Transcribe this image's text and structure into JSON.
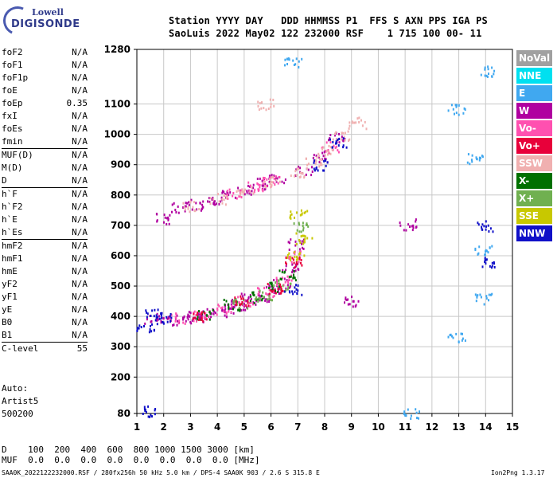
{
  "logo": {
    "line1": "Lowell",
    "line2": "DIGISONDE"
  },
  "header": {
    "line1": "Station YYYY DAY   DDD HHMMSS P1  FFS S AXN PPS IGA PS",
    "line2": "SaoLuis 2022 May02 122 232000 RSF    1 715 100 00- 11"
  },
  "params": [
    [
      {
        "k": "foF2",
        "v": "N/A"
      },
      {
        "k": "foF1",
        "v": "N/A"
      },
      {
        "k": "foF1p",
        "v": "N/A"
      },
      {
        "k": "foE",
        "v": "N/A"
      },
      {
        "k": "foEp",
        "v": "0.35"
      },
      {
        "k": "fxI",
        "v": "N/A"
      },
      {
        "k": "foEs",
        "v": "N/A"
      },
      {
        "k": "fmin",
        "v": "N/A"
      }
    ],
    [
      {
        "k": "MUF(D)",
        "v": "N/A"
      },
      {
        "k": "M(D)",
        "v": "N/A"
      },
      {
        "k": "D",
        "v": "N/A"
      }
    ],
    [
      {
        "k": "h`F",
        "v": "N/A"
      },
      {
        "k": "h`F2",
        "v": "N/A"
      },
      {
        "k": "h`E",
        "v": "N/A"
      },
      {
        "k": "h`Es",
        "v": "N/A"
      }
    ],
    [
      {
        "k": "hmF2",
        "v": "N/A"
      },
      {
        "k": "hmF1",
        "v": "N/A"
      },
      {
        "k": "hmE",
        "v": "N/A"
      },
      {
        "k": "yF2",
        "v": "N/A"
      },
      {
        "k": "yF1",
        "v": "N/A"
      },
      {
        "k": "yE",
        "v": "N/A"
      },
      {
        "k": "B0",
        "v": "N/A"
      },
      {
        "k": "B1",
        "v": "N/A"
      }
    ],
    [
      {
        "k": "C-level",
        "v": "55"
      }
    ]
  ],
  "auto": {
    "line1": "Auto:",
    "line2": "Artist5",
    "line3": "500200"
  },
  "dmuf": {
    "d_line": "D    100  200  400  600  800 1000 1500 3000 [km]",
    "muf_line": "MUF  0.0  0.0  0.0  0.0  0.0  0.0  0.0  0.0 [MHz]"
  },
  "footer": {
    "left": "SAA0K_2022122232000.RSF / 280fx256h 50 kHz 5.0 km / DPS-4 SAA0K 903 / 2.6 S 315.8 E",
    "right": "Ion2Png 1.3.17"
  },
  "legend": [
    {
      "label": "NoVal",
      "color": "#a0a0a0"
    },
    {
      "label": "NNE",
      "color": "#00e0f0"
    },
    {
      "label": "E",
      "color": "#40a8f0"
    },
    {
      "label": "W",
      "color": "#b000a0"
    },
    {
      "label": "Vo-",
      "color": "#ff50b0"
    },
    {
      "label": "Vo+",
      "color": "#e8003a"
    },
    {
      "label": "SSW",
      "color": "#f0b0b0"
    },
    {
      "label": "X-",
      "color": "#007000"
    },
    {
      "label": "X+",
      "color": "#70b050"
    },
    {
      "label": "SSE",
      "color": "#c8c800"
    },
    {
      "label": "NNW",
      "color": "#1010c8"
    }
  ],
  "chart_data": {
    "type": "scatter",
    "title": "",
    "xlabel": "",
    "ylabel": "",
    "xlim": [
      1,
      15
    ],
    "ylim": [
      80,
      1280
    ],
    "x_ticks": [
      1,
      2,
      3,
      4,
      5,
      6,
      7,
      8,
      9,
      10,
      11,
      12,
      13,
      14,
      15
    ],
    "y_ticks": [
      80,
      200,
      300,
      400,
      500,
      600,
      700,
      800,
      900,
      1000,
      1100,
      1280
    ],
    "grid": true,
    "series": [
      {
        "color": "#b000a0",
        "points": [
          [
            1.6,
            395
          ],
          [
            2.2,
            390
          ],
          [
            2.8,
            395
          ],
          [
            3.2,
            400
          ],
          [
            3.6,
            410
          ],
          [
            4.0,
            420
          ],
          [
            4.4,
            430
          ],
          [
            4.8,
            440
          ],
          [
            5.2,
            460
          ],
          [
            5.6,
            470
          ],
          [
            6.0,
            490
          ],
          [
            6.4,
            510
          ],
          [
            6.7,
            560
          ],
          [
            6.9,
            640
          ],
          [
            2.0,
            725
          ],
          [
            2.6,
            760
          ],
          [
            3.2,
            770
          ],
          [
            3.8,
            785
          ],
          [
            4.4,
            800
          ],
          [
            5.0,
            820
          ],
          [
            5.6,
            840
          ],
          [
            6.2,
            860
          ],
          [
            7.2,
            880
          ],
          [
            7.8,
            930
          ],
          [
            8.4,
            990
          ],
          [
            9.0,
            450
          ],
          [
            11.1,
            705
          ]
        ]
      },
      {
        "color": "#ff50b0",
        "points": [
          [
            2.5,
            395
          ],
          [
            3.4,
            405
          ],
          [
            4.2,
            425
          ],
          [
            5.0,
            450
          ],
          [
            5.8,
            480
          ],
          [
            6.5,
            520
          ],
          [
            6.8,
            600
          ],
          [
            4.6,
            805
          ],
          [
            5.4,
            830
          ],
          [
            6.0,
            850
          ],
          [
            8.2,
            960
          ]
        ]
      },
      {
        "color": "#f0b0b0",
        "points": [
          [
            3.0,
            765
          ],
          [
            4.0,
            790
          ],
          [
            5.0,
            815
          ],
          [
            6.0,
            845
          ],
          [
            7.0,
            880
          ],
          [
            7.6,
            910
          ],
          [
            8.0,
            950
          ],
          [
            8.6,
            1000
          ],
          [
            9.2,
            1040
          ],
          [
            5.8,
            1100
          ]
        ]
      },
      {
        "color": "#007000",
        "points": [
          [
            3.5,
            410
          ],
          [
            4.5,
            440
          ],
          [
            5.5,
            465
          ],
          [
            6.2,
            500
          ],
          [
            6.6,
            540
          ]
        ]
      },
      {
        "color": "#70b050",
        "points": [
          [
            4.8,
            445
          ],
          [
            5.7,
            470
          ],
          [
            6.4,
            505
          ],
          [
            7.1,
            700
          ]
        ]
      },
      {
        "color": "#e8003a",
        "points": [
          [
            3.3,
            405
          ],
          [
            4.9,
            455
          ],
          [
            6.1,
            495
          ],
          [
            6.8,
            580
          ]
        ]
      },
      {
        "color": "#1010c8",
        "points": [
          [
            1.3,
            370
          ],
          [
            1.6,
            410
          ],
          [
            2.0,
            395
          ],
          [
            14.0,
            700
          ],
          [
            14.0,
            580
          ],
          [
            6.8,
            490
          ],
          [
            7.8,
            900
          ],
          [
            8.5,
            975
          ],
          [
            1.4,
            90
          ]
        ]
      },
      {
        "color": "#40a8f0",
        "points": [
          [
            12.9,
            330
          ],
          [
            12.9,
            1085
          ],
          [
            13.9,
            460
          ],
          [
            13.9,
            620
          ],
          [
            14.0,
            1210
          ],
          [
            11.2,
            85
          ],
          [
            6.8,
            1240
          ],
          [
            13.6,
            920
          ]
        ]
      },
      {
        "color": "#c8c800",
        "points": [
          [
            6.9,
            600
          ],
          [
            7.2,
            660
          ],
          [
            7.0,
            740
          ]
        ]
      }
    ]
  }
}
